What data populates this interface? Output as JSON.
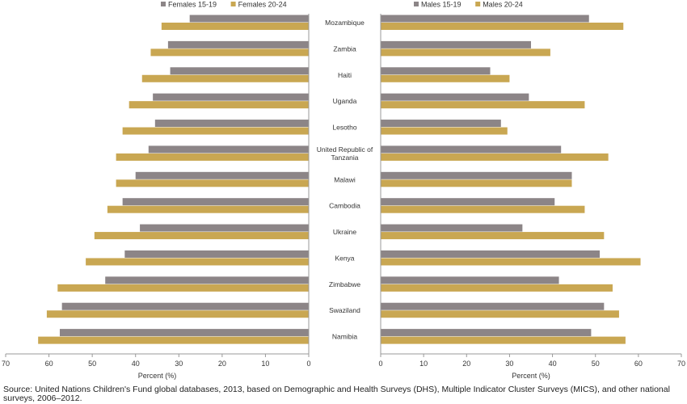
{
  "chart_data": {
    "type": "bar",
    "orientation": "horizontal",
    "categories": [
      "Mozambique",
      "Zambia",
      "Haiti",
      "Uganda",
      "Lesotho",
      "United Republic of Tanzania",
      "Malawi",
      "Cambodia",
      "Ukraine",
      "Kenya",
      "Zimbabwe",
      "Swaziland",
      "Namibia"
    ],
    "category_label_lines": [
      [
        "Mozambique"
      ],
      [
        "Zambia"
      ],
      [
        "Haiti"
      ],
      [
        "Uganda"
      ],
      [
        "Lesotho"
      ],
      [
        "United Republic of",
        "Tanzania"
      ],
      [
        "Malawi"
      ],
      [
        "Cambodia"
      ],
      [
        "Ukraine"
      ],
      [
        "Kenya"
      ],
      [
        "Zimbabwe"
      ],
      [
        "Swaziland"
      ],
      [
        "Namibia"
      ]
    ],
    "panels": [
      {
        "side": "females",
        "direction": "reversed",
        "xlabel": "Percent (%)",
        "xlim": [
          0,
          70
        ],
        "xticks": [
          "0",
          "10",
          "20",
          "30",
          "40",
          "50",
          "60",
          "70"
        ],
        "legend_position": "top",
        "series": [
          {
            "name": "Females 15-19",
            "color": "#8c8587",
            "values": [
              27.5,
              32.5,
              32,
              36,
              35.5,
              37,
              40,
              43,
              39,
              42.5,
              47,
              57,
              57.5
            ]
          },
          {
            "name": "Females 20-24",
            "color": "#c9a752",
            "values": [
              34,
              36.5,
              38.5,
              41.5,
              43,
              44.5,
              44.5,
              46.5,
              49.5,
              51.5,
              58,
              60.5,
              62.5
            ]
          }
        ]
      },
      {
        "side": "males",
        "direction": "normal",
        "xlabel": "Percent (%)",
        "xlim": [
          0,
          70
        ],
        "xticks": [
          "0",
          "10",
          "20",
          "30",
          "40",
          "50",
          "60",
          "70"
        ],
        "legend_position": "top",
        "series": [
          {
            "name": "Males 15-19",
            "color": "#8c8587",
            "values": [
              48.5,
              35,
              25.5,
              34.5,
              28,
              42,
              44.5,
              40.5,
              33,
              51,
              41.5,
              52,
              49
            ]
          },
          {
            "name": "Males 20-24",
            "color": "#c9a752",
            "values": [
              56.5,
              39.5,
              30,
              47.5,
              29.5,
              53,
              44.5,
              47.5,
              52,
              60.5,
              54,
              55.5,
              57
            ]
          }
        ]
      }
    ],
    "grid": false
  },
  "source_note": "Source: United Nations Children's Fund global databases, 2013, based on Demographic and Health Surveys (DHS), Multiple Indicator Cluster Surveys (MICS), and other national surveys, 2006–2012."
}
